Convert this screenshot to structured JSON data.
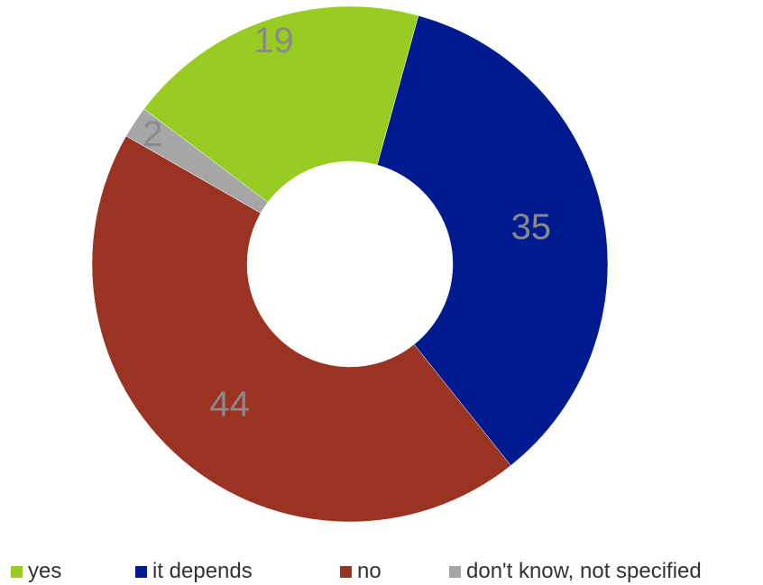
{
  "chart_data": {
    "type": "pie",
    "donut": true,
    "categories": [
      "yes",
      "it depends",
      "no",
      "don't know, not specified"
    ],
    "values": [
      19,
      35,
      44,
      2
    ],
    "colors": [
      "#99CC22",
      "#001A8F",
      "#9A3322",
      "#A6A6A6"
    ],
    "title": "",
    "legend_position": "bottom"
  }
}
